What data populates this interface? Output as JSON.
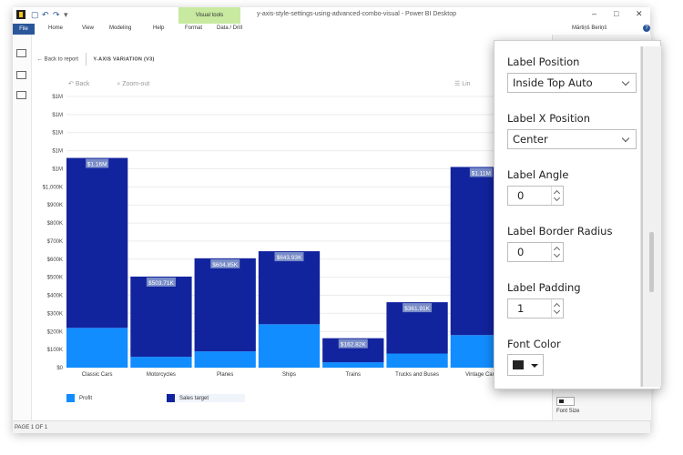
{
  "window": {
    "title": "y-axis-style-settings-using-advanced-combo-visual - Power BI Desktop",
    "visual_tools_label": "Visual tools",
    "user": "Mārtiņš Beriņš"
  },
  "menu": {
    "file": "File",
    "items": [
      "Home",
      "View",
      "Modeling",
      "Help",
      "Format",
      "Data / Drill"
    ]
  },
  "report": {
    "back_label": "Back to report",
    "breadcrumb": "Y-AXIS VARIATION (V3)",
    "back_btn": "Back",
    "zoom_out": "Zoom-out",
    "lin_label": "Lin",
    "status": "PAGE 1 OF 1"
  },
  "chart_data": {
    "type": "bar",
    "stacked": true,
    "categories": [
      "Classic Cars",
      "Motorcycles",
      "Planes",
      "Ships",
      "Trains",
      "Trucks and Buses",
      "Vintage Cars"
    ],
    "y_tick_labels": [
      "$1M",
      "$1M",
      "$1M",
      "$1M",
      "$1M",
      "$1,000K",
      "$900K",
      "$800K",
      "$700K",
      "$600K",
      "$500K",
      "$400K",
      "$300K",
      "$200K",
      "$100K",
      "$0"
    ],
    "ylim": [
      0,
      1400000
    ],
    "series": [
      {
        "name": "Profit",
        "color": "#118dff",
        "values": [
          220000,
          60000,
          90000,
          240000,
          30000,
          78000,
          180000
        ]
      },
      {
        "name": "Sales target",
        "color": "#12239e",
        "values": [
          940000,
          443710,
          514850,
          403930,
          132820,
          283910,
          930000
        ]
      }
    ],
    "data_labels": [
      "$1.16M",
      "$503.71K",
      "$604.85K",
      "$643.93K",
      "$162.82K",
      "$361.91K",
      "$1.11M"
    ],
    "legend_position": "bottom-left",
    "grid": true
  },
  "format_panel": {
    "label_position": {
      "label": "Label Position",
      "value": "Inside Top Auto"
    },
    "label_x_position": {
      "label": "Label X Position",
      "value": "Center"
    },
    "label_angle": {
      "label": "Label Angle",
      "value": "0"
    },
    "label_border_radius": {
      "label": "Label Border Radius",
      "value": "0"
    },
    "label_padding": {
      "label": "Label Padding",
      "value": "1"
    },
    "font_color": {
      "label": "Font Color",
      "value": "#222222"
    },
    "font_size_label": "Font Size"
  }
}
